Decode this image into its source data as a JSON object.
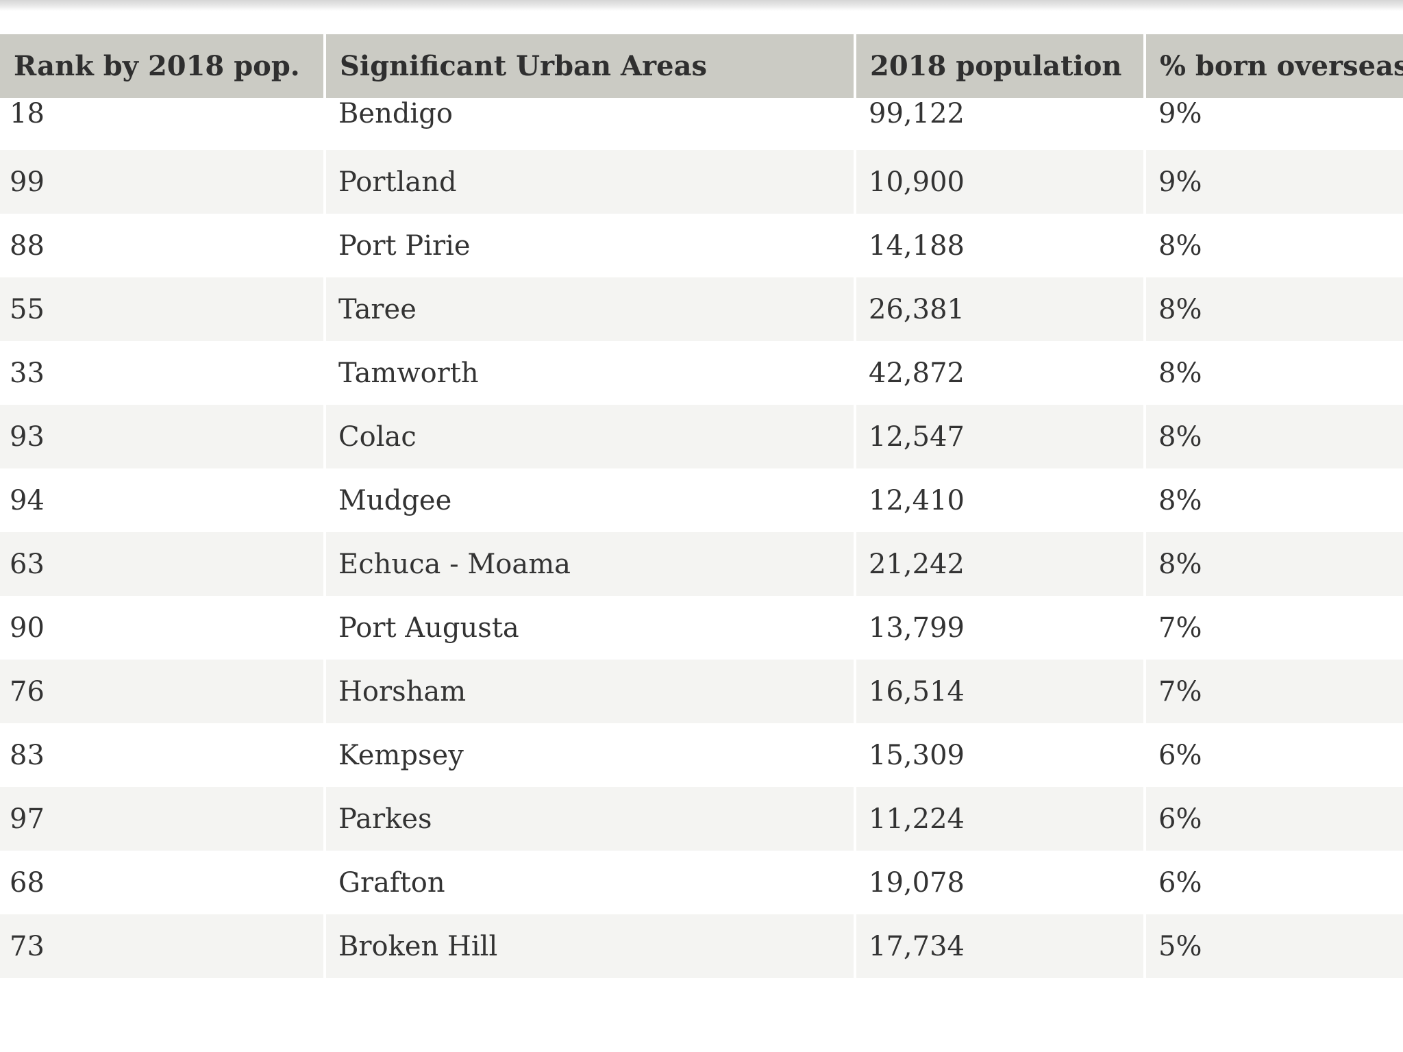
{
  "table": {
    "headers": [
      "Rank by 2018 pop.",
      "Significant Urban Areas",
      "2018 population",
      "% born overseas"
    ],
    "rows": [
      [
        "18",
        "Bendigo",
        "99,122",
        "9%"
      ],
      [
        "99",
        "Portland",
        "10,900",
        "9%"
      ],
      [
        "88",
        "Port Pirie",
        "14,188",
        "8%"
      ],
      [
        "55",
        "Taree",
        "26,381",
        "8%"
      ],
      [
        "33",
        "Tamworth",
        "42,872",
        "8%"
      ],
      [
        "93",
        "Colac",
        "12,547",
        "8%"
      ],
      [
        "94",
        "Mudgee",
        "12,410",
        "8%"
      ],
      [
        "63",
        "Echuca - Moama",
        "21,242",
        "8%"
      ],
      [
        "90",
        "Port Augusta",
        "13,799",
        "7%"
      ],
      [
        "76",
        "Horsham",
        "16,514",
        "7%"
      ],
      [
        "83",
        "Kempsey",
        "15,309",
        "6%"
      ],
      [
        "97",
        "Parkes",
        "11,224",
        "6%"
      ],
      [
        "68",
        "Grafton",
        "19,078",
        "6%"
      ],
      [
        "73",
        "Broken Hill",
        "17,734",
        "5%"
      ]
    ]
  },
  "colors": {
    "header_background": "#cbcbc4",
    "row_alt_background": "#f4f4f2",
    "text": "#333333"
  }
}
